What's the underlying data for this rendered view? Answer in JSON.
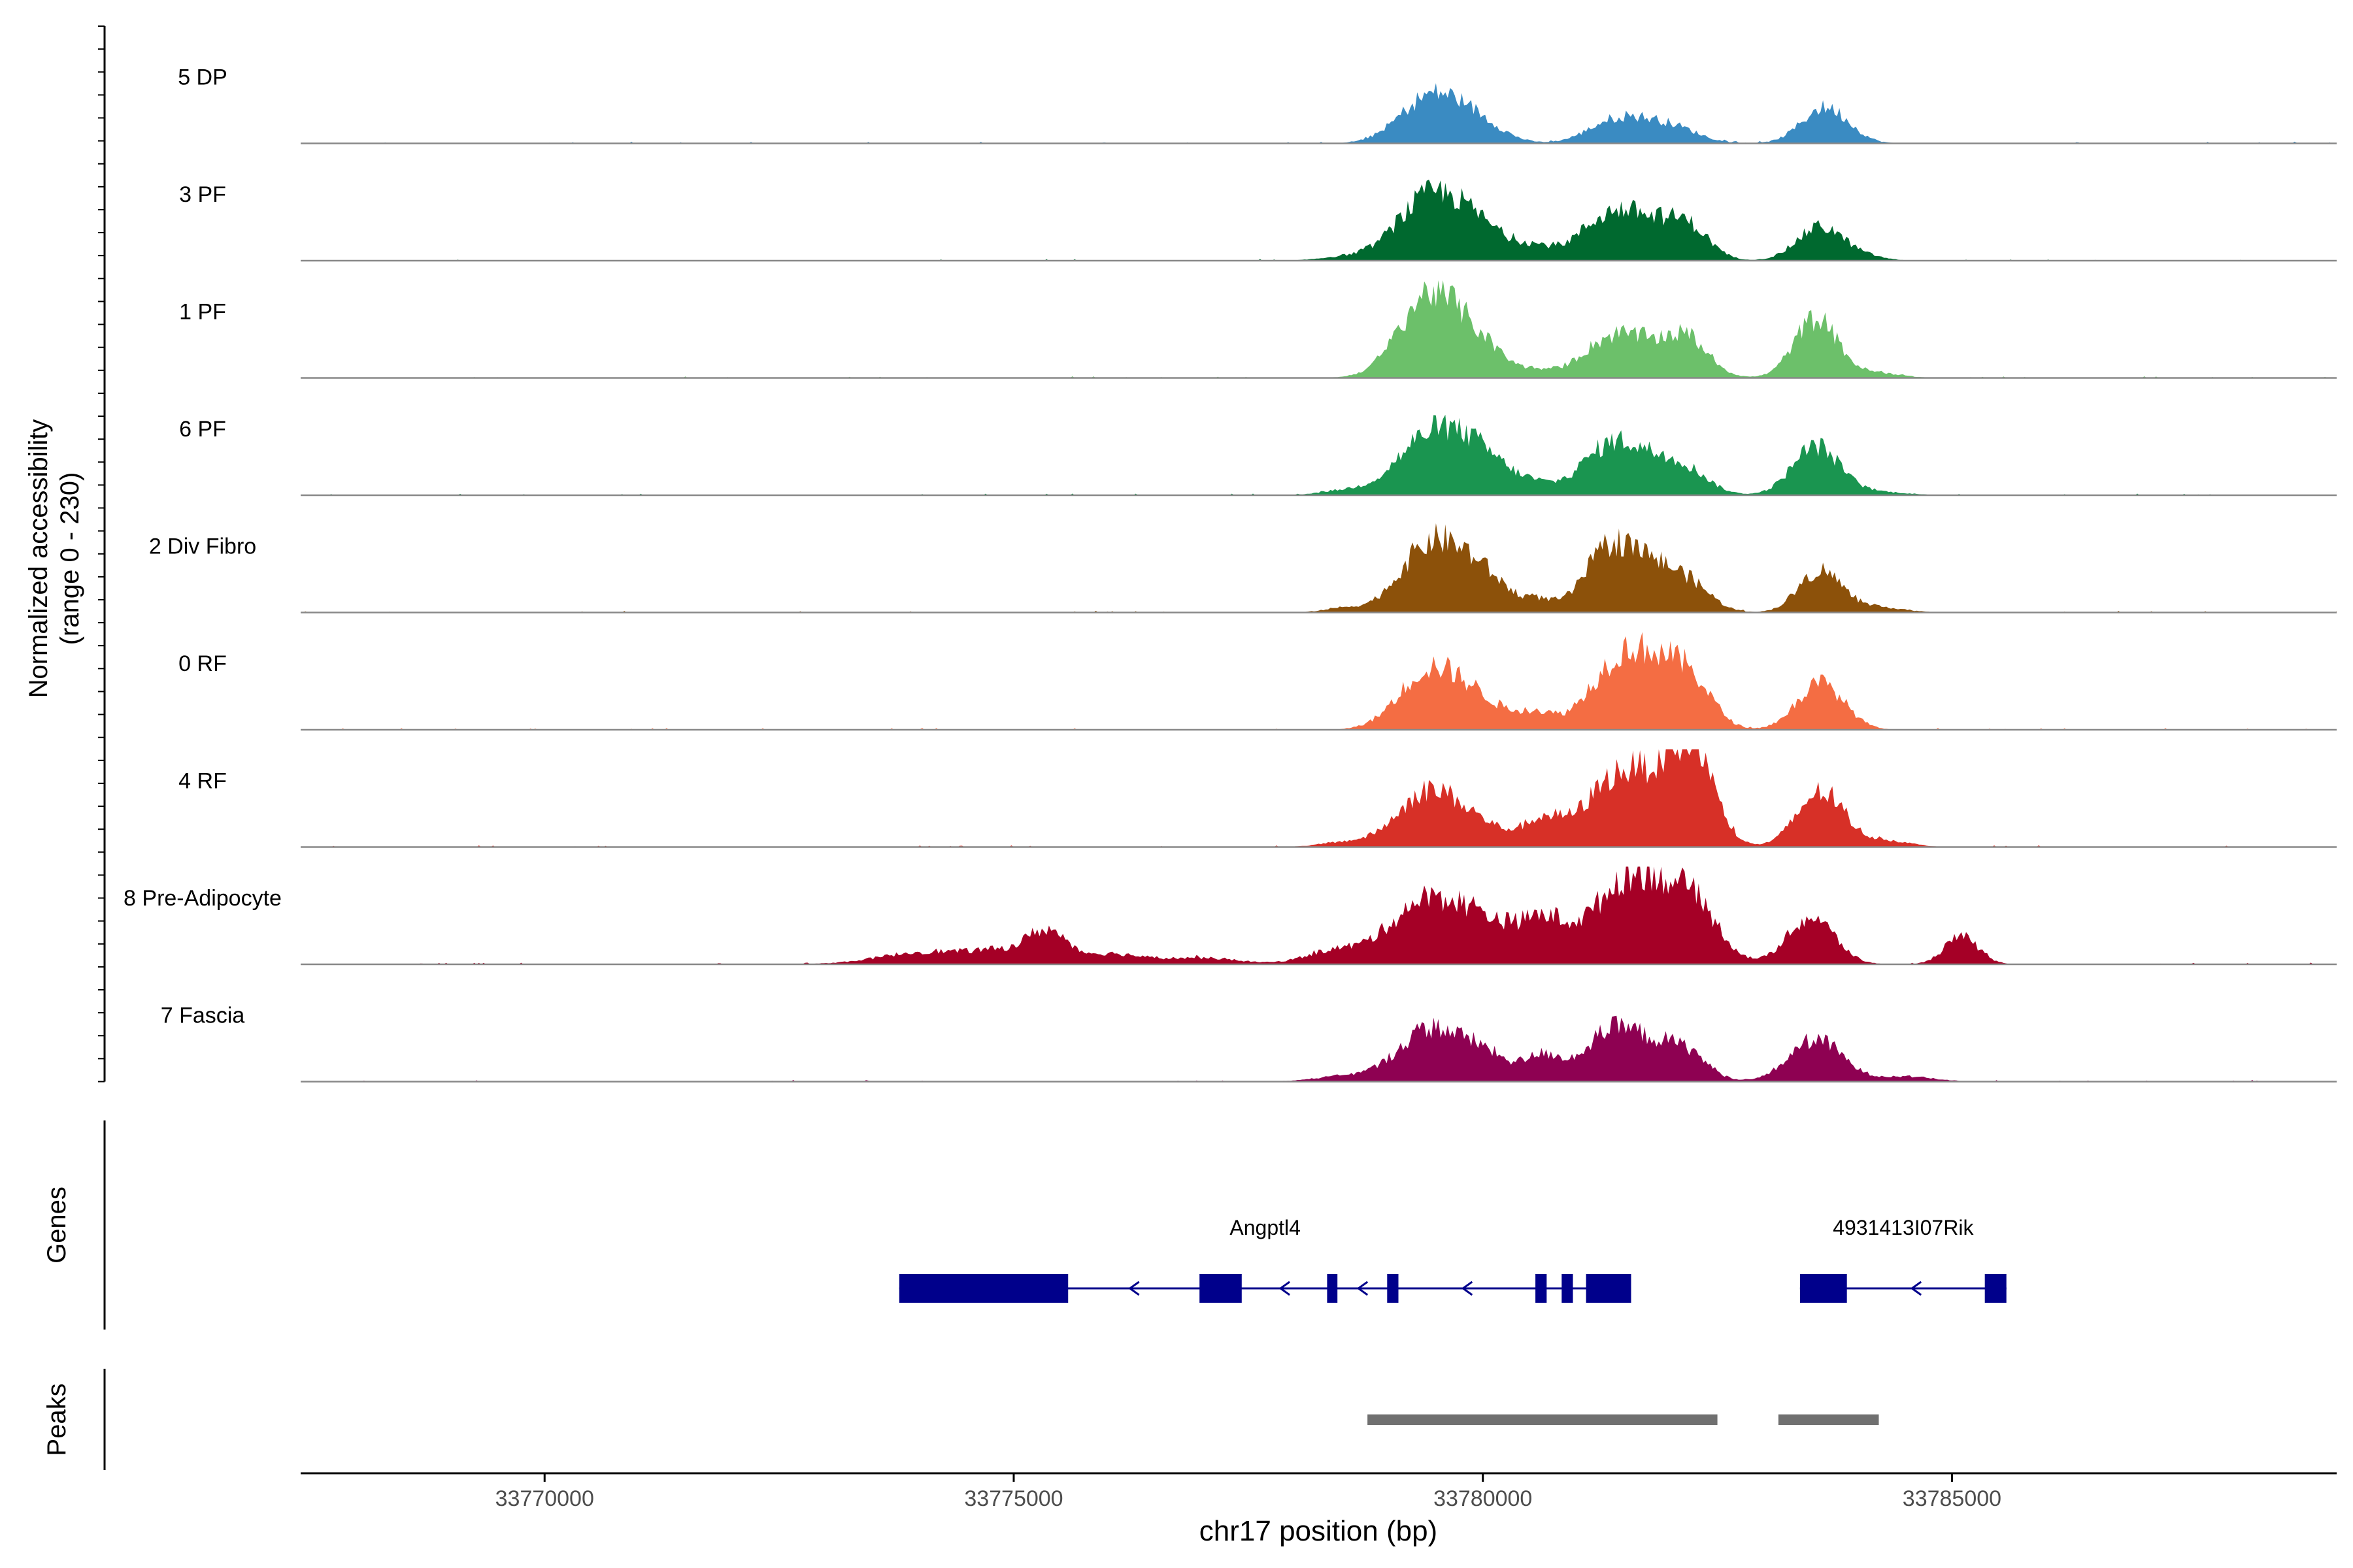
{
  "chart_data": {
    "type": "area",
    "title": "",
    "ylabel_line1": "Normalized accessibility",
    "ylabel_line2": "(range 0 - 230)",
    "y_range": [
      0,
      230
    ],
    "xlabel": "chr17 position (bp)",
    "xlim": [
      33767400,
      33789100
    ],
    "x_ticks": [
      33770000,
      33775000,
      33780000,
      33785000
    ],
    "x_tick_labels": [
      "33770000",
      "33775000",
      "33780000",
      "33785000"
    ],
    "tracks": [
      {
        "name": "5 DP",
        "color": "#3a8bc2",
        "peaks": [
          [
            33779450,
            110,
            330
          ],
          [
            33779950,
            40,
            280
          ],
          [
            33781350,
            35,
            280
          ],
          [
            33781700,
            40,
            320
          ],
          [
            33782100,
            22,
            260
          ],
          [
            33783650,
            85,
            250
          ]
        ]
      },
      {
        "name": "3 PF",
        "color": "#00692f",
        "peaks": [
          [
            33778500,
            8,
            250
          ],
          [
            33779450,
            150,
            360
          ],
          [
            33780000,
            55,
            300
          ],
          [
            33780550,
            25,
            200
          ],
          [
            33781250,
            60,
            300
          ],
          [
            33781700,
            90,
            380
          ],
          [
            33782200,
            55,
            220
          ],
          [
            33783600,
            80,
            250
          ],
          [
            33784100,
            8,
            200
          ]
        ]
      },
      {
        "name": "1 PF",
        "color": "#6cc06a",
        "peaks": [
          [
            33779450,
            200,
            330
          ],
          [
            33780000,
            55,
            250
          ],
          [
            33780550,
            15,
            200
          ],
          [
            33781300,
            60,
            300
          ],
          [
            33781750,
            70,
            380
          ],
          [
            33782200,
            65,
            220
          ],
          [
            33783550,
            140,
            230
          ],
          [
            33784200,
            12,
            250
          ]
        ]
      },
      {
        "name": "6 PF",
        "color": "#1a9550",
        "peaks": [
          [
            33778500,
            10,
            250
          ],
          [
            33779450,
            140,
            360
          ],
          [
            33780000,
            75,
            300
          ],
          [
            33780550,
            20,
            200
          ],
          [
            33781300,
            80,
            300
          ],
          [
            33781750,
            80,
            380
          ],
          [
            33782200,
            30,
            220
          ],
          [
            33783550,
            115,
            250
          ],
          [
            33784200,
            8,
            300
          ]
        ]
      },
      {
        "name": "2 Div Fibro",
        "color": "#8c510a",
        "peaks": [
          [
            33778500,
            10,
            200
          ],
          [
            33779450,
            160,
            330
          ],
          [
            33780000,
            75,
            280
          ],
          [
            33780600,
            25,
            180
          ],
          [
            33781300,
            110,
            250
          ],
          [
            33781750,
            115,
            330
          ],
          [
            33782250,
            40,
            220
          ],
          [
            33783600,
            100,
            230
          ],
          [
            33784250,
            12,
            250
          ]
        ]
      },
      {
        "name": "0 RF",
        "color": "#f46d43",
        "peaks": [
          [
            33779450,
            145,
            330
          ],
          [
            33780000,
            50,
            250
          ],
          [
            33780550,
            40,
            200
          ],
          [
            33781350,
            95,
            300
          ],
          [
            33781800,
            150,
            350
          ],
          [
            33782250,
            70,
            220
          ],
          [
            33783600,
            110,
            250
          ]
        ]
      },
      {
        "name": "4 RF",
        "color": "#d73027",
        "peaks": [
          [
            33778500,
            10,
            250
          ],
          [
            33779450,
            135,
            350
          ],
          [
            33780050,
            30,
            250
          ],
          [
            33780650,
            65,
            220
          ],
          [
            33781300,
            90,
            280
          ],
          [
            33781800,
            155,
            380
          ],
          [
            33782250,
            175,
            220
          ],
          [
            33783600,
            130,
            250
          ],
          [
            33784300,
            15,
            250
          ]
        ]
      },
      {
        "name": "8 Pre-Adipocyte",
        "color": "#a50026",
        "peaks": [
          [
            33774100,
            30,
            500
          ],
          [
            33774900,
            25,
            300
          ],
          [
            33775350,
            70,
            200
          ],
          [
            33776000,
            25,
            350
          ],
          [
            33777000,
            15,
            400
          ],
          [
            33778400,
            30,
            300
          ],
          [
            33779400,
            150,
            400
          ],
          [
            33780050,
            75,
            300
          ],
          [
            33780650,
            95,
            250
          ],
          [
            33781400,
            90,
            350
          ],
          [
            33781800,
            160,
            400
          ],
          [
            33782300,
            80,
            250
          ],
          [
            33783500,
            110,
            250
          ],
          [
            33785100,
            65,
            180
          ]
        ]
      },
      {
        "name": "7 Fascia",
        "color": "#8e0152",
        "peaks": [
          [
            33778500,
            12,
            300
          ],
          [
            33779450,
            125,
            350
          ],
          [
            33780050,
            50,
            250
          ],
          [
            33780650,
            60,
            200
          ],
          [
            33781300,
            85,
            260
          ],
          [
            33781750,
            85,
            330
          ],
          [
            33782200,
            45,
            220
          ],
          [
            33783550,
            100,
            280
          ],
          [
            33784500,
            12,
            300
          ]
        ]
      }
    ],
    "genes_label": "Genes",
    "genes": [
      {
        "name": "Angptl4",
        "start": 33773780,
        "end": 33781580,
        "strand": "-",
        "exons": [
          [
            33773780,
            33775580
          ],
          [
            33776980,
            33777430
          ],
          [
            33778340,
            33778450
          ],
          [
            33778980,
            33779100
          ],
          [
            33780560,
            33780680
          ],
          [
            33780840,
            33780960
          ],
          [
            33781100,
            33781580
          ]
        ]
      },
      {
        "name": "4931413I07Rik",
        "start": 33783380,
        "end": 33785580,
        "strand": "-",
        "exons": [
          [
            33783380,
            33783880
          ],
          [
            33785350,
            33785580
          ]
        ]
      }
    ],
    "peaks_label": "Peaks",
    "peak_regions": [
      [
        33778770,
        33782500
      ],
      [
        33783150,
        33784220
      ]
    ]
  }
}
